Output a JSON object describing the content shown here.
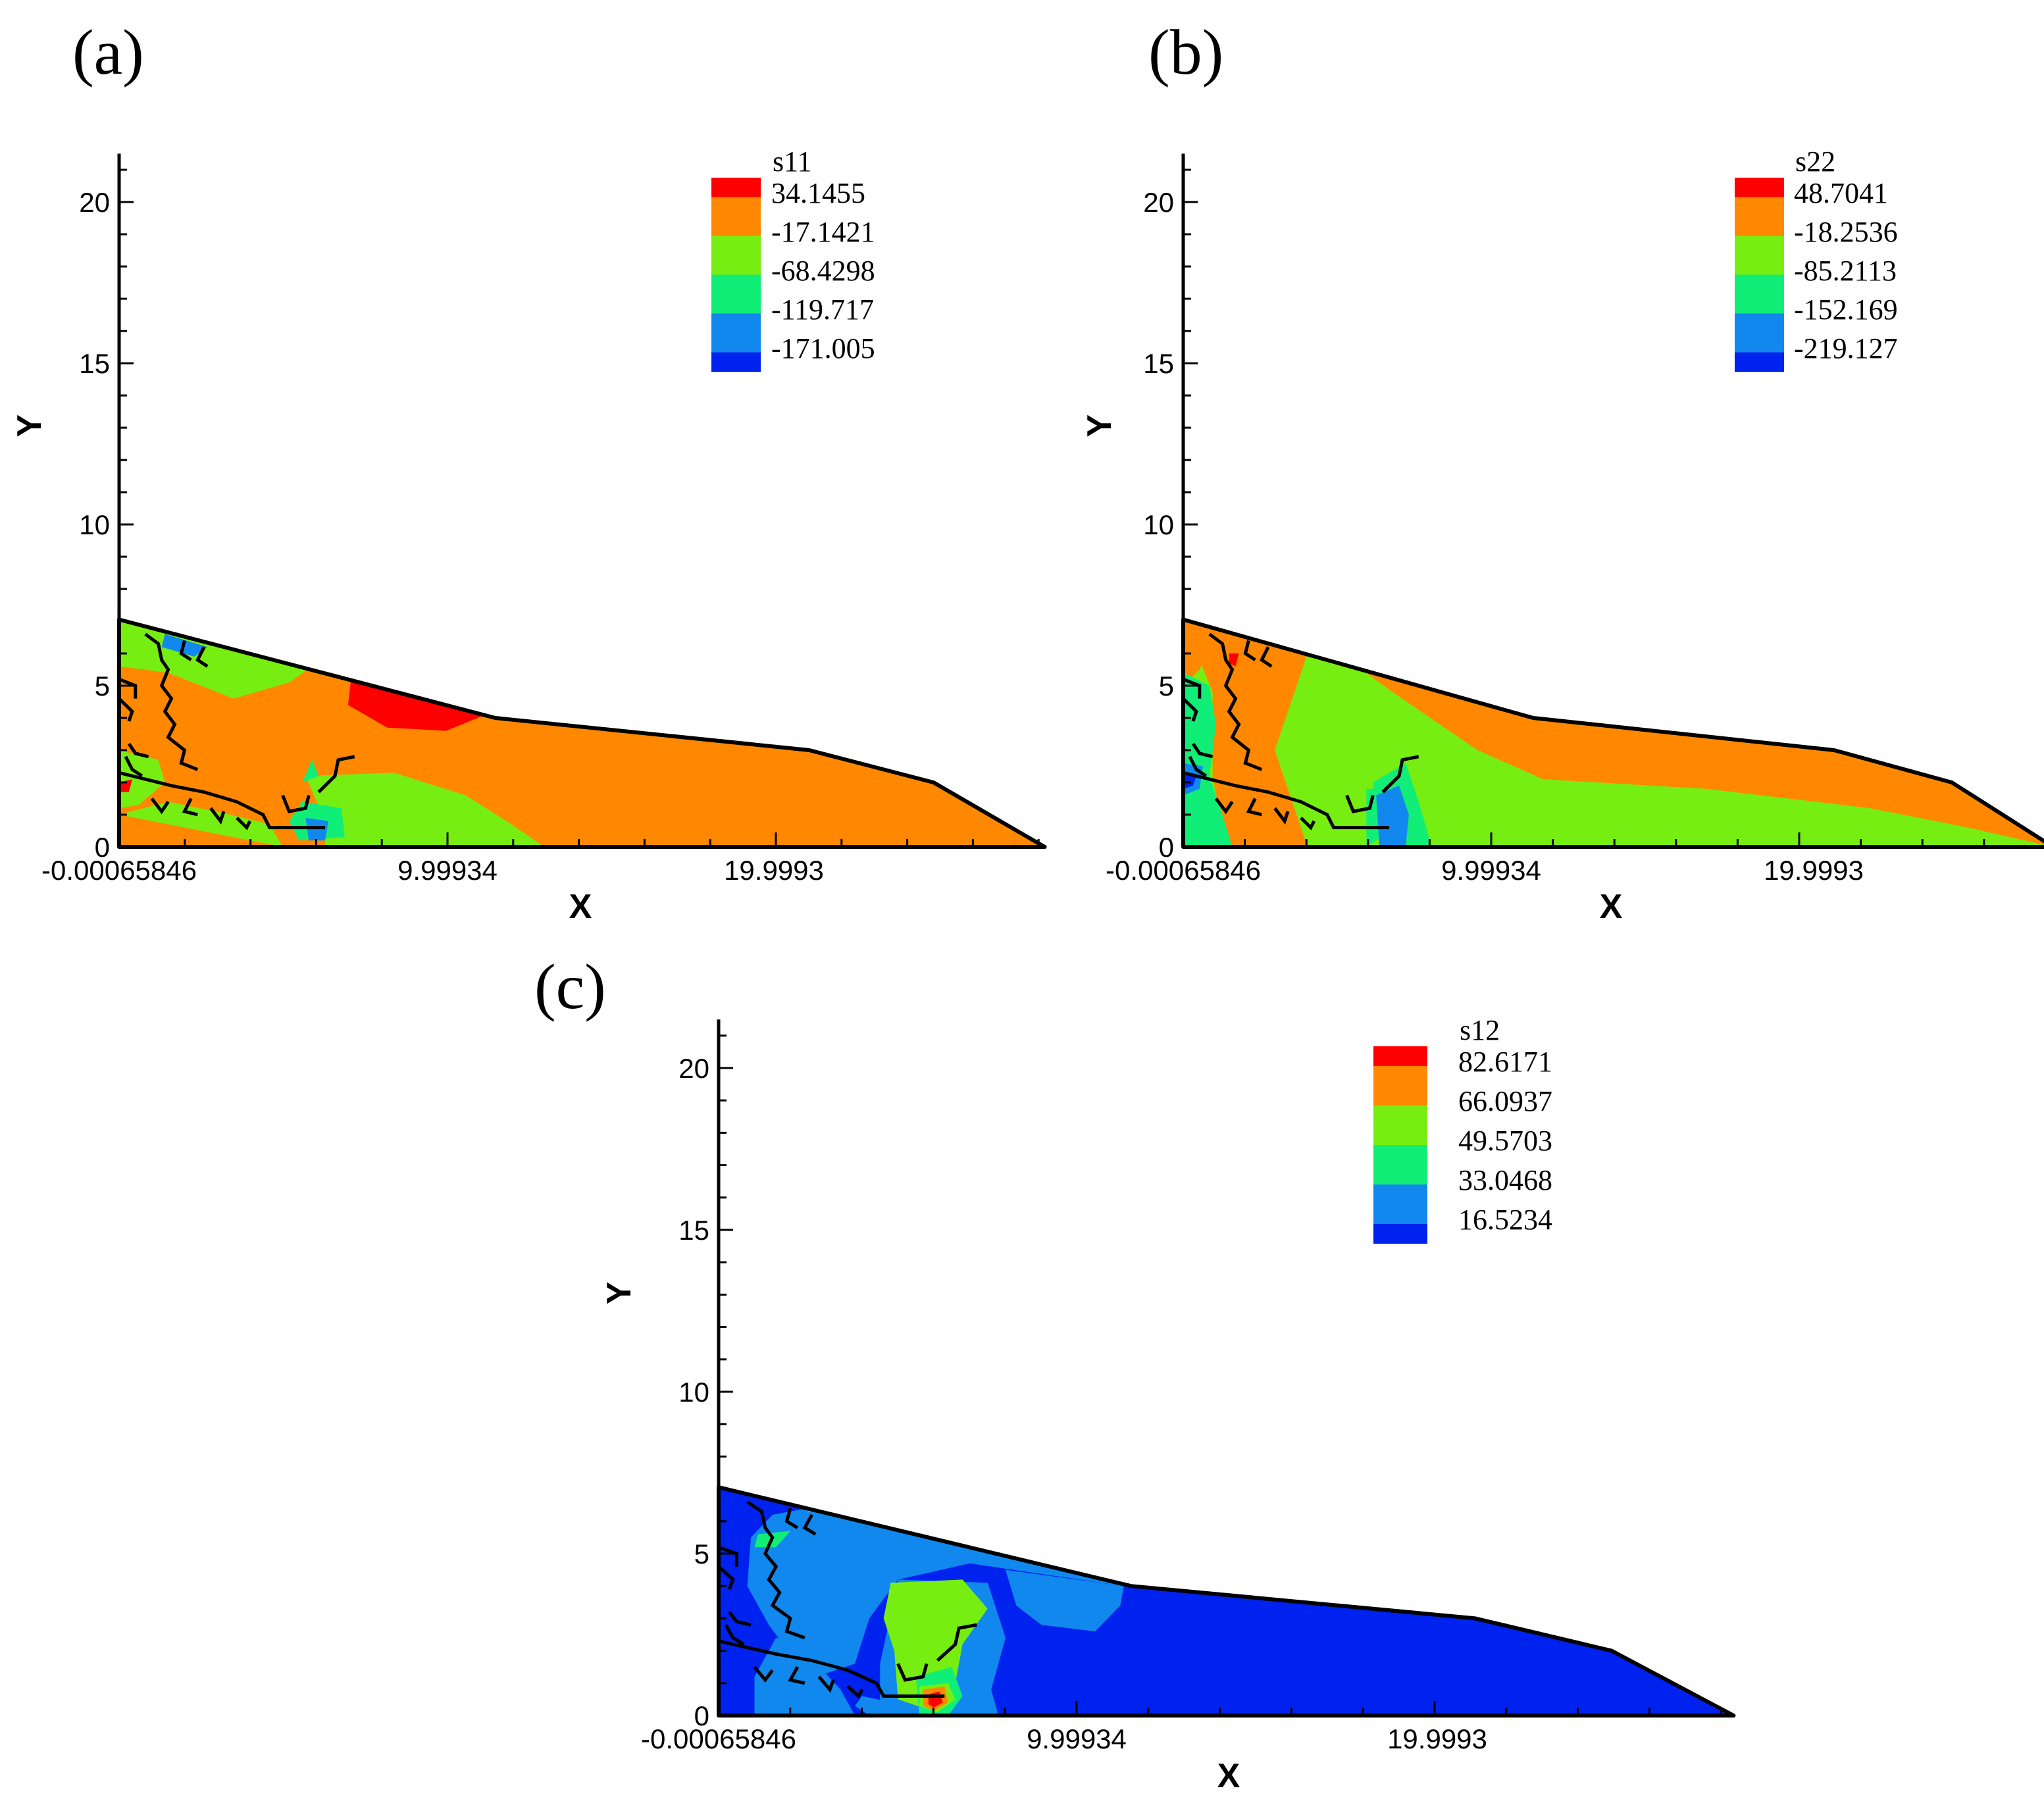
{
  "colors": {
    "red": "#ff0000",
    "orange": "#ff8800",
    "lime": "#77ee11",
    "green": "#11ee77",
    "azure": "#1188ee",
    "blue": "#0022ee"
  },
  "chart_data": [
    {
      "id": "a",
      "type": "contour",
      "panel_label": "(a)",
      "variable": "s11",
      "xlabel": "X",
      "ylabel": "Y",
      "xticks": [
        "-0.00065846",
        "9.99934",
        "19.9993"
      ],
      "yticks": [
        "0",
        "5",
        "10",
        "15",
        "20"
      ],
      "xlim": [
        -0.00065846,
        28.5
      ],
      "ylim": [
        0,
        21.5
      ],
      "legend": [
        {
          "value": "34.1455",
          "color": "red"
        },
        {
          "value": "-17.1421",
          "color": "orange"
        },
        {
          "value": "-68.4298",
          "color": "lime"
        },
        {
          "value": "-119.717",
          "color": "green"
        },
        {
          "value": "-171.005",
          "color": "azure"
        },
        {
          "value": "",
          "color": "blue"
        }
      ],
      "base_color": "orange"
    },
    {
      "id": "b",
      "type": "contour",
      "panel_label": "(b)",
      "variable": "s22",
      "xlabel": "X",
      "ylabel": "Y",
      "xticks": [
        "-0.00065846",
        "9.99934",
        "19.9993"
      ],
      "yticks": [
        "0",
        "5",
        "10",
        "15",
        "20"
      ],
      "xlim": [
        -0.00065846,
        26.5
      ],
      "ylim": [
        0,
        21.5
      ],
      "legend": [
        {
          "value": "48.7041",
          "color": "red"
        },
        {
          "value": "-18.2536",
          "color": "orange"
        },
        {
          "value": "-85.2113",
          "color": "lime"
        },
        {
          "value": "-152.169",
          "color": "green"
        },
        {
          "value": "-219.127",
          "color": "azure"
        },
        {
          "value": "",
          "color": "blue"
        }
      ],
      "base_color": "lime"
    },
    {
      "id": "c",
      "type": "contour",
      "panel_label": "(c)",
      "variable": "s12",
      "xlabel": "X",
      "ylabel": "Y",
      "xticks": [
        "-0.00065846",
        "9.99934",
        "19.9993"
      ],
      "yticks": [
        "0",
        "5",
        "10",
        "15",
        "20"
      ],
      "xlim": [
        -0.00065846,
        28.5
      ],
      "ylim": [
        0,
        21.5
      ],
      "legend": [
        {
          "value": "82.6171",
          "color": "red"
        },
        {
          "value": "66.0937",
          "color": "orange"
        },
        {
          "value": "49.5703",
          "color": "lime"
        },
        {
          "value": "33.0468",
          "color": "green"
        },
        {
          "value": "16.5234",
          "color": "azure"
        },
        {
          "value": "",
          "color": "blue"
        }
      ],
      "base_color": "blue"
    }
  ]
}
